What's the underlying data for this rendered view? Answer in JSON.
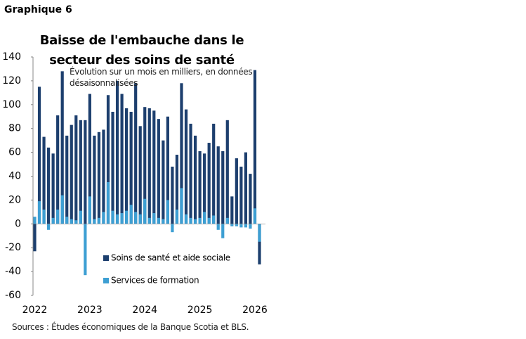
{
  "header": "Graphique 6",
  "chart_data": {
    "type": "bar",
    "title": "Baisse de l'embauche dans le secteur des soins de santé",
    "subtitle": "Évolution sur un mois en milliers, en données désaisonnalisées",
    "categories": [
      "2022",
      null,
      null,
      null,
      null,
      null,
      null,
      null,
      null,
      null,
      null,
      null,
      "2023",
      null,
      null,
      null,
      null,
      null,
      null,
      null,
      null,
      null,
      null,
      null,
      "2024",
      null,
      null,
      null,
      null,
      null,
      null,
      null,
      null,
      null,
      null,
      null,
      "2025",
      null,
      null,
      null,
      null,
      null,
      null,
      null,
      null,
      null,
      null,
      null,
      "2026",
      null
    ],
    "series": [
      {
        "name": "Soins de santé et aide sociale",
        "color": "#1d3f6e",
        "values": [
          -23,
          115,
          73,
          64,
          59,
          91,
          128,
          74,
          83,
          91,
          87,
          87,
          109,
          74,
          77,
          79,
          108,
          94,
          120,
          109,
          97,
          94,
          118,
          82,
          98,
          97,
          95,
          88,
          70,
          90,
          48,
          58,
          118,
          96,
          84,
          74,
          61,
          59,
          68,
          84,
          65,
          61,
          87,
          23,
          55,
          48,
          60,
          42,
          129,
          -34
        ]
      },
      {
        "name": "Services de formation",
        "color": "#3d9fd3",
        "values": [
          6,
          19,
          12,
          -5,
          5,
          12,
          24,
          6,
          4,
          3,
          11,
          -43,
          23,
          4,
          5,
          10,
          35,
          11,
          8,
          9,
          11,
          16,
          10,
          8,
          21,
          5,
          9,
          5,
          4,
          20,
          -7,
          12,
          30,
          8,
          5,
          4,
          5,
          10,
          5,
          7,
          -5,
          -12,
          5,
          -2,
          -2,
          -3,
          -3,
          -4,
          13,
          -15
        ]
      }
    ],
    "ylim": [
      -60,
      140
    ],
    "yticks": [
      -60,
      -40,
      -20,
      0,
      20,
      40,
      60,
      80,
      100,
      120,
      140
    ],
    "grid": false,
    "source": "Sources : Études économiques de la Banque Scotia et BLS."
  }
}
